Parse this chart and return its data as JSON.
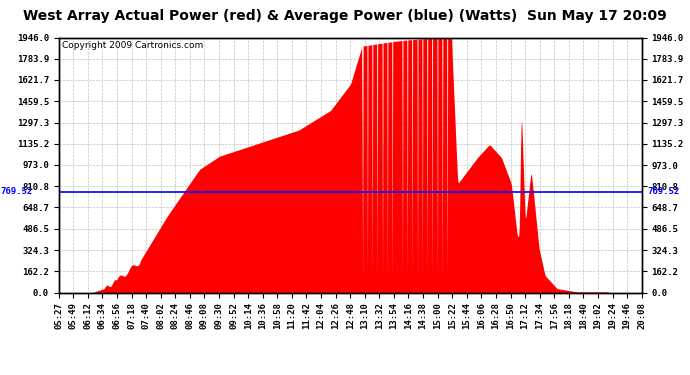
{
  "title": "West Array Actual Power (red) & Average Power (blue) (Watts)  Sun May 17 20:09",
  "copyright": "Copyright 2009 Cartronics.com",
  "avg_power": 769.52,
  "ymax": 1946.0,
  "ymin": 0.0,
  "yticks_left": [
    0.0,
    162.2,
    324.3,
    486.5,
    648.7,
    810.8,
    973.0,
    1135.2,
    1297.3,
    1459.5,
    1621.7,
    1783.9,
    1946.0
  ],
  "yticks_right": [
    0.0,
    162.2,
    324.3,
    486.5,
    648.7,
    810.8,
    973.0,
    1135.2,
    1297.3,
    1459.5,
    1621.7,
    1783.9,
    1946.0
  ],
  "bg_color": "#ffffff",
  "fill_color": "red",
  "line_color": "blue",
  "grid_color": "#bbbbbb",
  "title_fontsize": 10,
  "copyright_fontsize": 6.5,
  "tick_fontsize": 6.5,
  "x_labels": [
    "05:27",
    "05:49",
    "06:12",
    "06:34",
    "06:56",
    "07:18",
    "07:40",
    "08:02",
    "08:24",
    "08:46",
    "09:08",
    "09:30",
    "09:52",
    "10:14",
    "10:36",
    "10:58",
    "11:20",
    "11:42",
    "12:04",
    "12:26",
    "12:48",
    "13:10",
    "13:32",
    "13:54",
    "14:16",
    "14:38",
    "15:00",
    "15:22",
    "15:44",
    "16:06",
    "16:28",
    "16:50",
    "17:12",
    "17:34",
    "17:56",
    "18:18",
    "18:40",
    "19:02",
    "19:24",
    "19:46",
    "20:08"
  ]
}
